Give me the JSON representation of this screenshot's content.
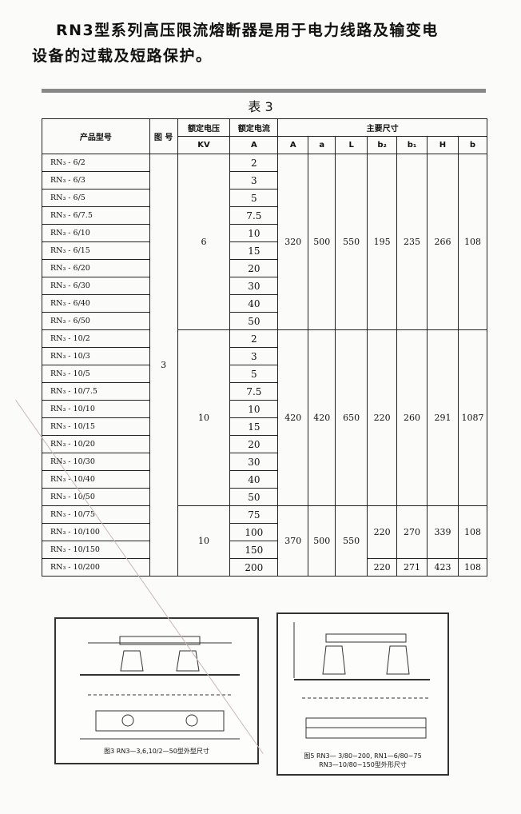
{
  "intro_text": {
    "line1": "RN3型系列高压限流熔断器是用于电力线路及输变电",
    "line2": "设备的过载及短路保护。"
  },
  "table_caption": "表 3",
  "table": {
    "headers": {
      "model": "产品型号",
      "figure": "图 号",
      "voltage": "额定电压",
      "voltage_unit": "KV",
      "current": "额定电流",
      "current_unit": "A",
      "dims": "主要尺寸",
      "dim_cols": [
        "A",
        "a",
        "L",
        "b₂",
        "b₁",
        "H",
        "b"
      ]
    },
    "figure_no": "3",
    "groups": [
      {
        "voltage": "6",
        "models": [
          "6/2",
          "6/3",
          "6/5",
          "6/7.5",
          "6/10",
          "6/15",
          "6/20",
          "6/30",
          "6/40",
          "6/50"
        ],
        "currents": [
          "2",
          "3",
          "5",
          "7.5",
          "10",
          "15",
          "20",
          "30",
          "40",
          "50"
        ],
        "dims": [
          "320",
          "500",
          "550",
          "195",
          "235",
          "266",
          "108"
        ]
      },
      {
        "voltage": "10",
        "models": [
          "10/2",
          "10/3",
          "10/5",
          "10/7.5",
          "10/10",
          "10/15",
          "10/20",
          "10/30",
          "10/40",
          "10/50"
        ],
        "currents": [
          "2",
          "3",
          "5",
          "7.5",
          "10",
          "15",
          "20",
          "30",
          "40",
          "50"
        ],
        "dims": [
          "420",
          "420",
          "650",
          "220",
          "260",
          "291",
          "1087"
        ]
      },
      {
        "voltage": "10",
        "models": [
          "10/75",
          "10/100",
          "10/150",
          "10/200"
        ],
        "currents": [
          "75",
          "100",
          "150",
          "200"
        ],
        "dims": [
          "370",
          "500",
          "550",
          "220",
          "270",
          "339",
          "108"
        ],
        "last_row_dims": [
          "220",
          "271",
          "423",
          "108"
        ]
      }
    ],
    "model_prefix": "RN₃ - "
  },
  "figures": [
    {
      "caption": "图3 RN3—3,6,10/2—50型外型尺寸"
    },
    {
      "caption": "图5 RN3— 3/80~200, RN1—6/80~75\nRN3—10/80~150型外形尺寸"
    }
  ]
}
